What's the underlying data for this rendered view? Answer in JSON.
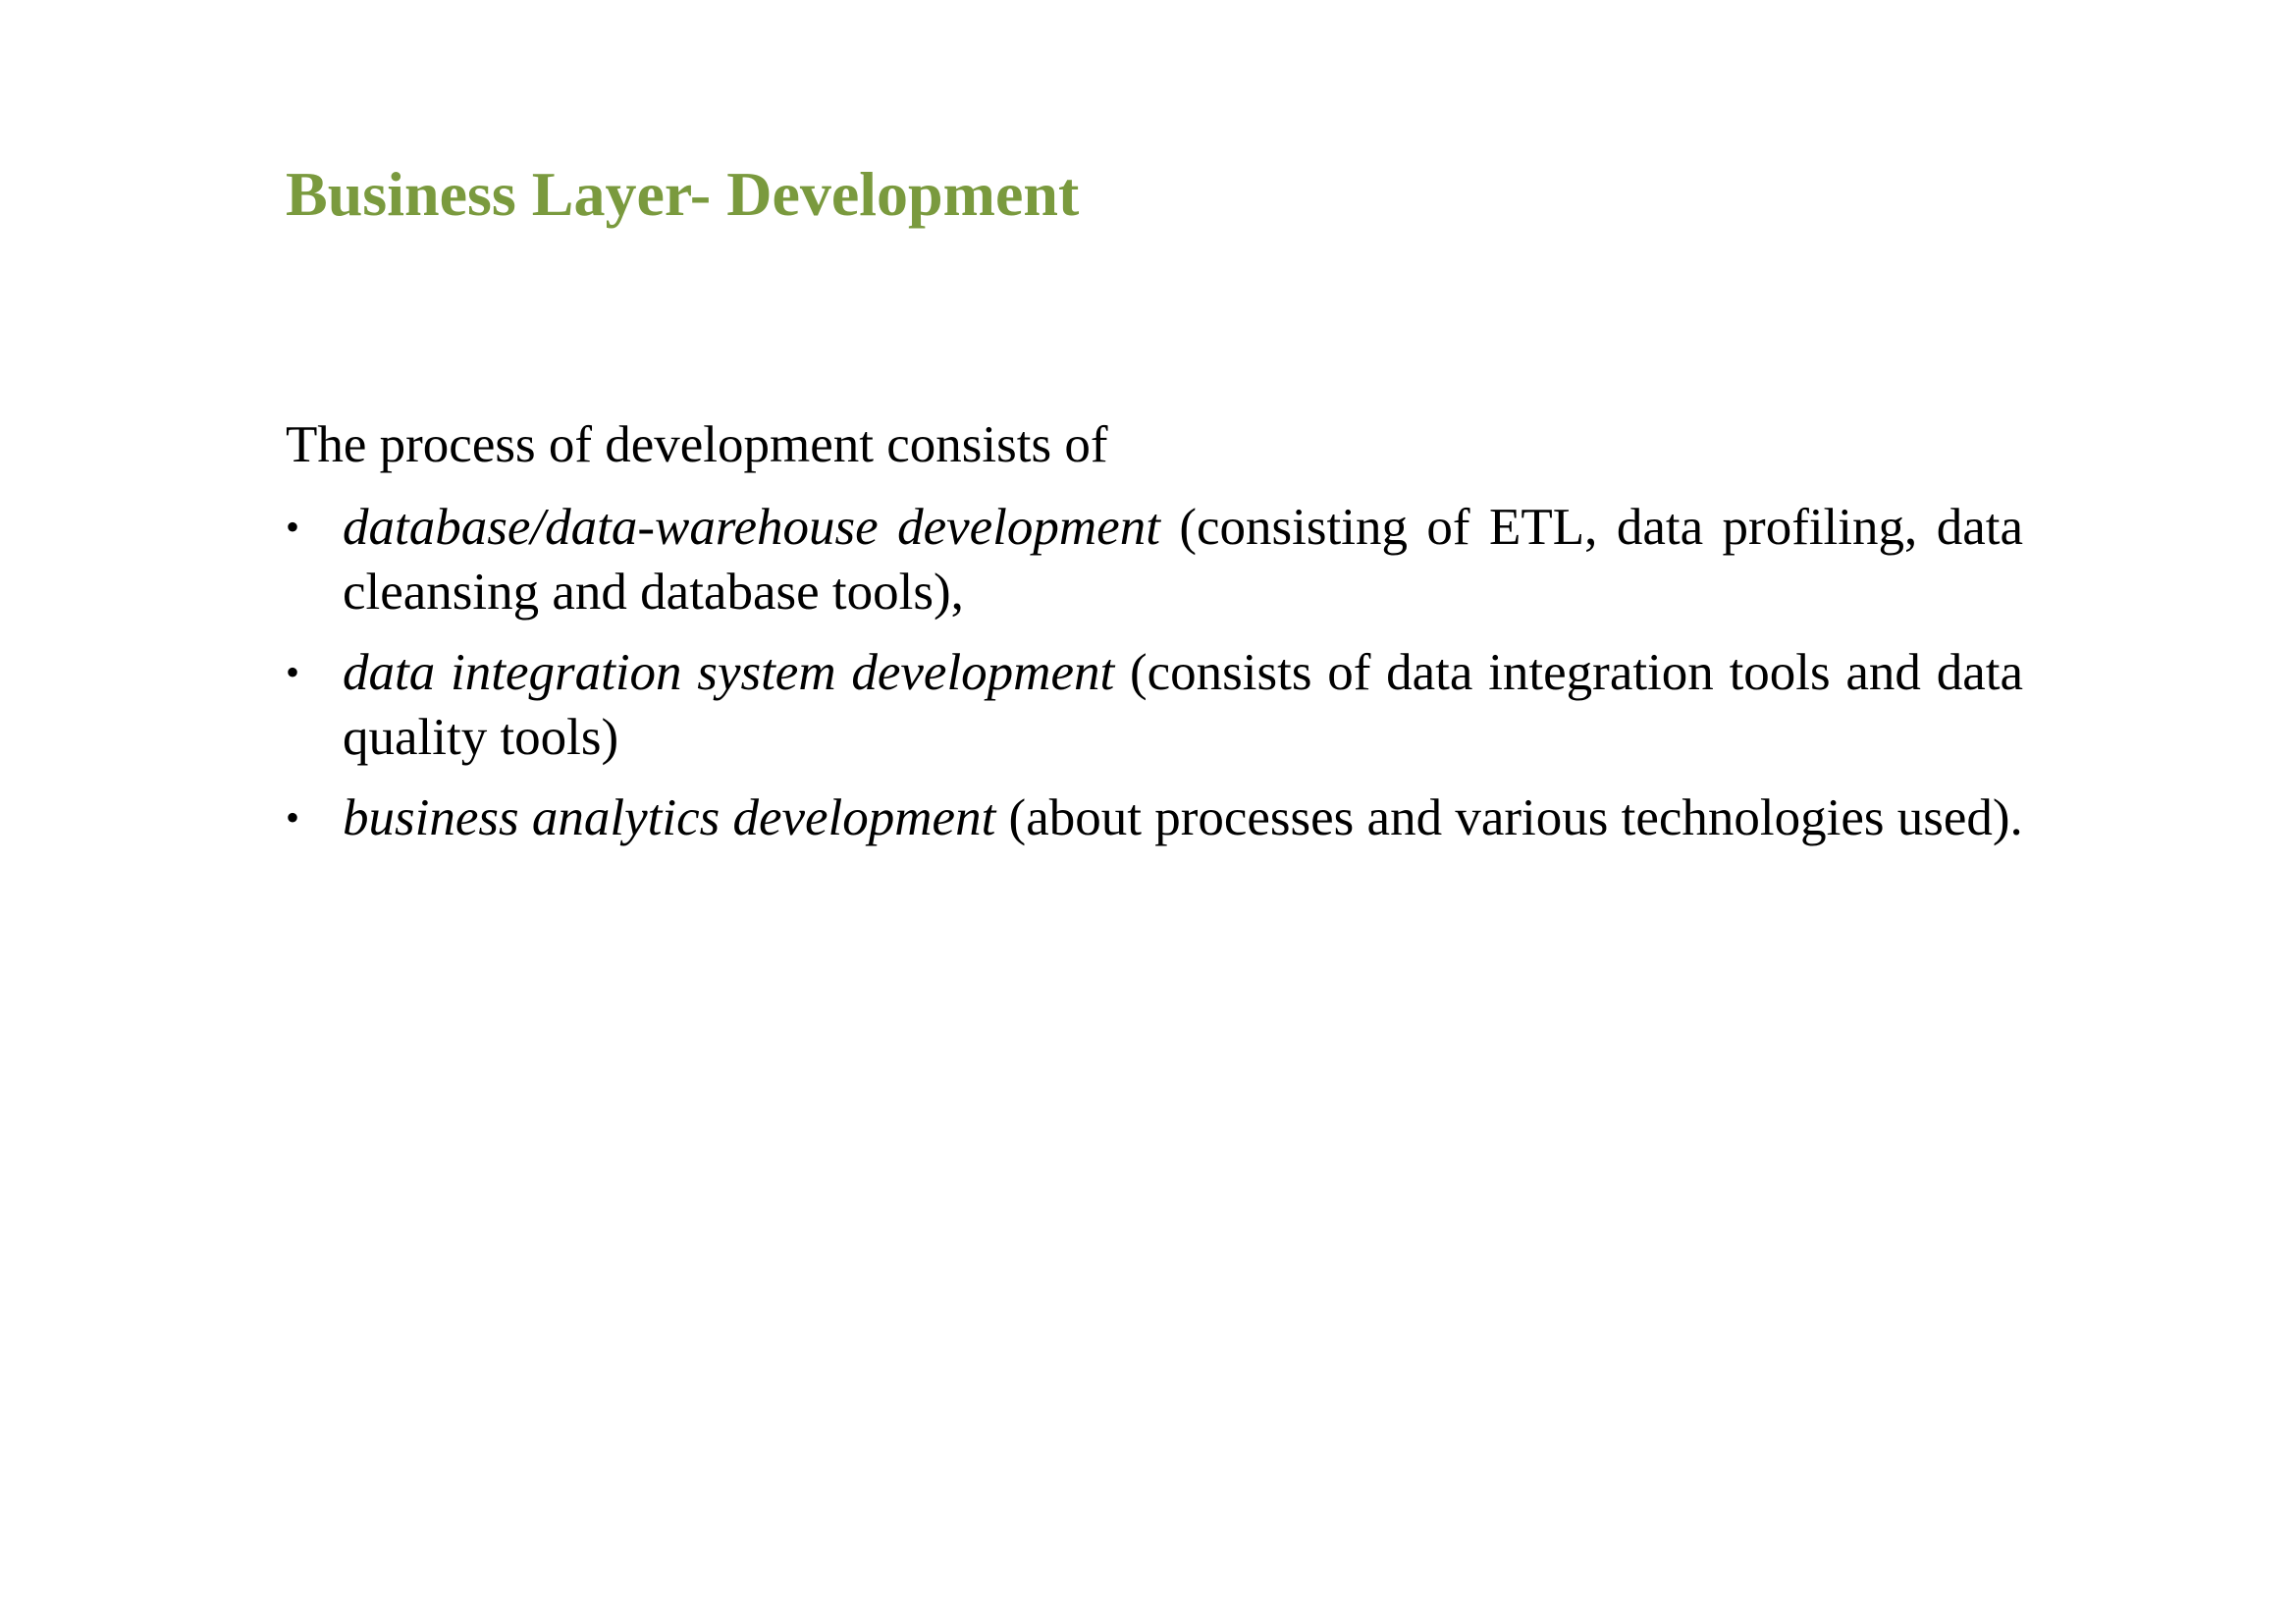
{
  "slide": {
    "title": "Business Layer- Development",
    "title_color": "#7a9a3e",
    "intro": "The process of development consists of",
    "bullet_glyph": "•",
    "bullets": [
      {
        "term": "database/data-warehouse development",
        "detail": " (consisting of ETL, data profiling, data cleansing and database tools),"
      },
      {
        "term": "data integration system development",
        "detail": " (consists of data integration tools and data quality tools)"
      },
      {
        "term": "business analytics development",
        "detail": " (about processes and various technologies used)."
      }
    ]
  }
}
